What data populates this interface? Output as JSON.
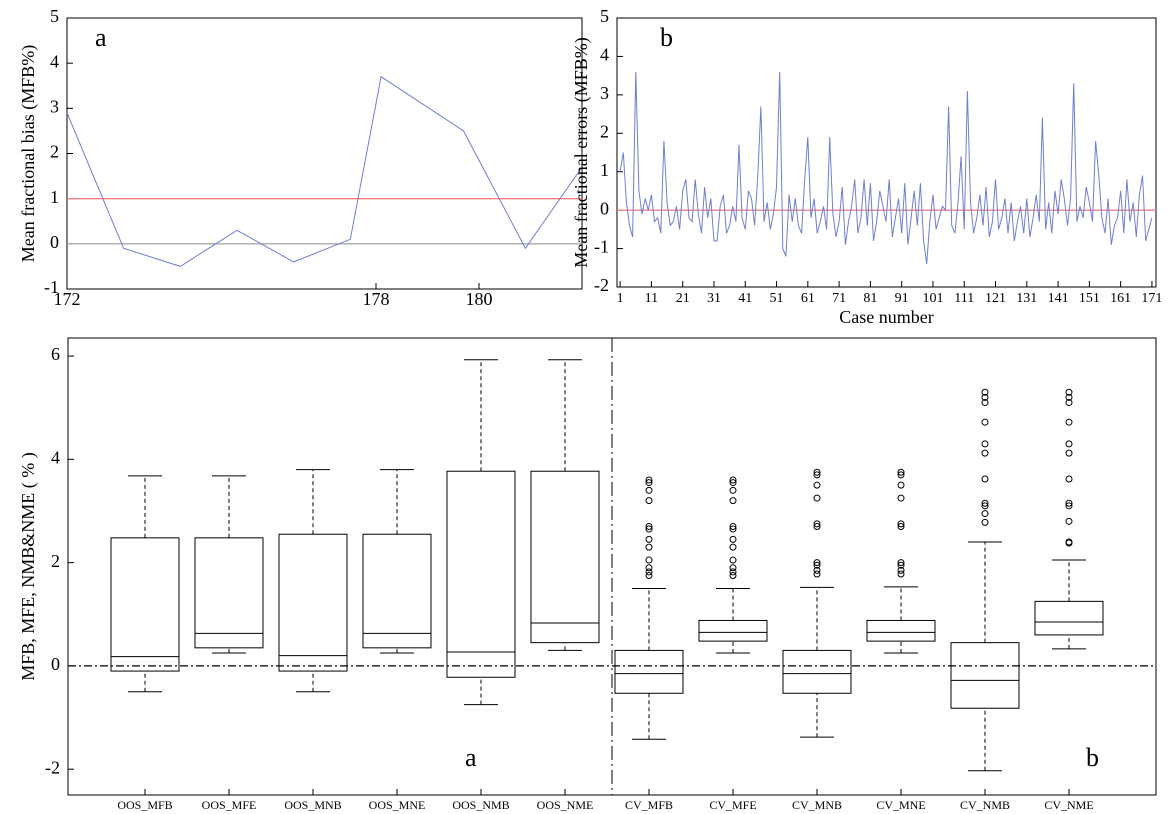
{
  "chart_data": [
    {
      "type": "line",
      "ylabel": "Mean fractional bias (MFB%)",
      "annotations": [
        "a"
      ],
      "x": [
        172,
        173.1,
        174.2,
        175.3,
        176.4,
        177.5,
        178.1,
        179.7,
        180.9,
        182
      ],
      "series": [
        {
          "color": "#6f7fd0",
          "values": [
            2.9,
            -0.1,
            -0.5,
            0.3,
            -0.4,
            0.1,
            3.7,
            2.5,
            -0.1,
            1.7
          ]
        }
      ],
      "ref_lines": [
        {
          "value": 1,
          "color": "#f08080"
        },
        {
          "value": 0,
          "color": "#aaaaaa"
        }
      ],
      "xlim": [
        172,
        182
      ],
      "xticks": [
        172,
        178,
        180
      ],
      "ylim": [
        -1,
        5
      ],
      "yticks": [
        -1,
        0,
        1,
        2,
        3,
        4,
        5
      ]
    },
    {
      "type": "line",
      "ylabel": "Mean fractional errors (MFB%)",
      "xlabel": "Case number",
      "annotations": [
        "b"
      ],
      "x": [
        1,
        2,
        3,
        4,
        5,
        6,
        7,
        8,
        9,
        10,
        11,
        12,
        13,
        14,
        15,
        16,
        17,
        18,
        19,
        20,
        21,
        22,
        23,
        24,
        25,
        26,
        27,
        28,
        29,
        30,
        31,
        32,
        33,
        34,
        35,
        36,
        37,
        38,
        39,
        40,
        41,
        42,
        43,
        44,
        45,
        46,
        47,
        48,
        49,
        50,
        51,
        52,
        53,
        54,
        55,
        56,
        57,
        58,
        59,
        60,
        61,
        62,
        63,
        64,
        65,
        66,
        67,
        68,
        69,
        70,
        71,
        72,
        73,
        74,
        75,
        76,
        77,
        78,
        79,
        80,
        81,
        82,
        83,
        84,
        85,
        86,
        87,
        88,
        89,
        90,
        91,
        92,
        93,
        94,
        95,
        96,
        97,
        98,
        99,
        100,
        101,
        102,
        103,
        104,
        105,
        106,
        107,
        108,
        109,
        110,
        111,
        112,
        113,
        114,
        115,
        116,
        117,
        118,
        119,
        120,
        121,
        122,
        123,
        124,
        125,
        126,
        127,
        128,
        129,
        130,
        131,
        132,
        133,
        134,
        135,
        136,
        137,
        138,
        139,
        140,
        141,
        142,
        143,
        144,
        145,
        146,
        147,
        148,
        149,
        150,
        151,
        152,
        153,
        154,
        155,
        156,
        157,
        158,
        159,
        160,
        161,
        162,
        163,
        164,
        165,
        166,
        167,
        168,
        169,
        170,
        171
      ],
      "series": [
        {
          "color": "#6f7fd0",
          "values": [
            1.0,
            1.5,
            0.2,
            -0.4,
            -0.7,
            3.6,
            0.5,
            -0.1,
            0.3,
            0.0,
            0.4,
            -0.3,
            -0.2,
            -0.6,
            1.8,
            0.2,
            -0.4,
            -0.3,
            0.1,
            -0.5,
            0.5,
            0.8,
            -0.2,
            -0.3,
            0.8,
            -0.1,
            -0.6,
            0.6,
            -0.2,
            0.3,
            -0.8,
            -0.8,
            0.1,
            0.4,
            -0.6,
            -0.4,
            0.1,
            -0.3,
            1.7,
            -0.2,
            -0.5,
            0.5,
            0.3,
            -0.4,
            0.9,
            2.7,
            -0.3,
            0.2,
            -0.5,
            -0.1,
            0.6,
            3.6,
            -1.0,
            -1.2,
            0.4,
            -0.3,
            0.3,
            -0.4,
            -0.6,
            0.8,
            1.9,
            -0.2,
            0.3,
            -0.6,
            -0.3,
            0.1,
            -0.5,
            1.9,
            -0.1,
            -0.7,
            -0.3,
            0.6,
            -0.9,
            -0.3,
            0.1,
            0.8,
            -0.6,
            -0.2,
            0.8,
            -0.4,
            0.7,
            -0.8,
            -0.3,
            0.5,
            0.1,
            -0.3,
            0.8,
            -0.7,
            -0.2,
            0.3,
            -0.6,
            0.7,
            -0.9,
            -0.2,
            0.5,
            -0.4,
            0.7,
            -0.8,
            -1.4,
            -0.3,
            0.4,
            -0.5,
            -0.2,
            0.1,
            0.0,
            2.7,
            -0.4,
            -0.6,
            0.2,
            1.4,
            -0.5,
            3.1,
            0.2,
            -0.6,
            -0.2,
            0.4,
            -0.4,
            0.6,
            -0.7,
            -0.3,
            0.8,
            -0.5,
            -0.2,
            0.3,
            -0.6,
            0.2,
            -0.8,
            -0.3,
            0.1,
            -0.6,
            0.3,
            -0.7,
            -0.2,
            0.4,
            -0.3,
            2.4,
            -0.5,
            0.2,
            -0.6,
            0.5,
            -0.1,
            0.8,
            0.3,
            -0.4,
            0.3,
            3.3,
            -0.3,
            0.1,
            -0.2,
            0.6,
            0.2,
            -0.3,
            1.8,
            0.9,
            -0.2,
            -0.6,
            0.3,
            -0.9,
            -0.4,
            -0.2,
            0.5,
            -0.6,
            0.8,
            -0.3,
            0.2,
            -0.7,
            0.4,
            0.9,
            -0.8,
            -0.5,
            -0.2
          ]
        }
      ],
      "ref_lines": [
        {
          "value": 0,
          "color": "#aaaaaa"
        },
        {
          "value": 0,
          "color": "#f08080"
        }
      ],
      "xlim": [
        0,
        172.3
      ],
      "xticks": [
        1,
        11,
        21,
        31,
        41,
        51,
        61,
        71,
        81,
        91,
        101,
        111,
        121,
        131,
        141,
        151,
        161,
        171
      ],
      "ylim": [
        -2,
        5
      ],
      "yticks": [
        -2,
        -1,
        0,
        1,
        2,
        3,
        4,
        5
      ]
    },
    {
      "type": "box",
      "ylabel": "MFB, MFE, NMB&NME ( % )",
      "annotations": [
        "a",
        "b"
      ],
      "categories": [
        "OOS_MFB",
        "OOS_MFE",
        "OOS_MNB",
        "OOS_MNE",
        "OOS_NMB",
        "OOS_NME",
        "CV_MFB",
        "CV_MFE",
        "CV_MNB",
        "CV_MNE",
        "CV_NMB",
        "CV_NME"
      ],
      "boxes": [
        {
          "whislo": -0.5,
          "q1": -0.1,
          "med": 0.18,
          "q3": 2.48,
          "whishi": 3.68,
          "fliers": []
        },
        {
          "whislo": 0.25,
          "q1": 0.35,
          "med": 0.63,
          "q3": 2.48,
          "whishi": 3.68,
          "fliers": []
        },
        {
          "whislo": -0.5,
          "q1": -0.1,
          "med": 0.2,
          "q3": 2.55,
          "whishi": 3.8,
          "fliers": []
        },
        {
          "whislo": 0.25,
          "q1": 0.35,
          "med": 0.63,
          "q3": 2.55,
          "whishi": 3.8,
          "fliers": []
        },
        {
          "whislo": -0.75,
          "q1": -0.22,
          "med": 0.27,
          "q3": 3.77,
          "whishi": 5.93,
          "fliers": []
        },
        {
          "whislo": 0.3,
          "q1": 0.45,
          "med": 0.83,
          "q3": 3.77,
          "whishi": 5.93,
          "fliers": []
        },
        {
          "whislo": -1.42,
          "q1": -0.53,
          "med": -0.15,
          "q3": 0.3,
          "whishi": 1.5,
          "fliers": [
            1.75,
            1.82,
            1.9,
            2.05,
            2.3,
            2.45,
            2.65,
            2.7,
            3.2,
            3.4,
            3.55,
            3.6
          ]
        },
        {
          "whislo": 0.25,
          "q1": 0.48,
          "med": 0.65,
          "q3": 0.88,
          "whishi": 1.5,
          "fliers": [
            1.75,
            1.82,
            1.9,
            2.05,
            2.3,
            2.45,
            2.65,
            2.7,
            3.2,
            3.4,
            3.55,
            3.6
          ]
        },
        {
          "whislo": -1.38,
          "q1": -0.53,
          "med": -0.15,
          "q3": 0.3,
          "whishi": 1.52,
          "fliers": [
            1.78,
            1.85,
            1.95,
            2.0,
            2.7,
            2.75,
            3.25,
            3.5,
            3.7,
            3.75
          ]
        },
        {
          "whislo": 0.25,
          "q1": 0.48,
          "med": 0.65,
          "q3": 0.88,
          "whishi": 1.53,
          "fliers": [
            1.78,
            1.85,
            1.95,
            2.0,
            2.7,
            2.75,
            3.25,
            3.5,
            3.7,
            3.75
          ]
        },
        {
          "whislo": -2.03,
          "q1": -0.82,
          "med": -0.28,
          "q3": 0.45,
          "whishi": 2.4,
          "fliers": [
            2.78,
            2.95,
            3.1,
            3.15,
            3.62,
            4.12,
            4.3,
            4.72,
            5.1,
            5.2,
            5.3
          ]
        },
        {
          "whislo": 0.33,
          "q1": 0.6,
          "med": 0.85,
          "q3": 1.25,
          "whishi": 2.05,
          "fliers": [
            2.38,
            2.4,
            2.8,
            3.1,
            3.15,
            3.62,
            4.12,
            4.3,
            4.72,
            5.1,
            5.2,
            5.3
          ]
        }
      ],
      "ref_lines": [
        {
          "value": 0,
          "color": "#000000",
          "style": "dashdot"
        }
      ],
      "ylim": [
        -2.5,
        6.35
      ],
      "yticks": [
        -2,
        0,
        2,
        4,
        6
      ]
    }
  ]
}
